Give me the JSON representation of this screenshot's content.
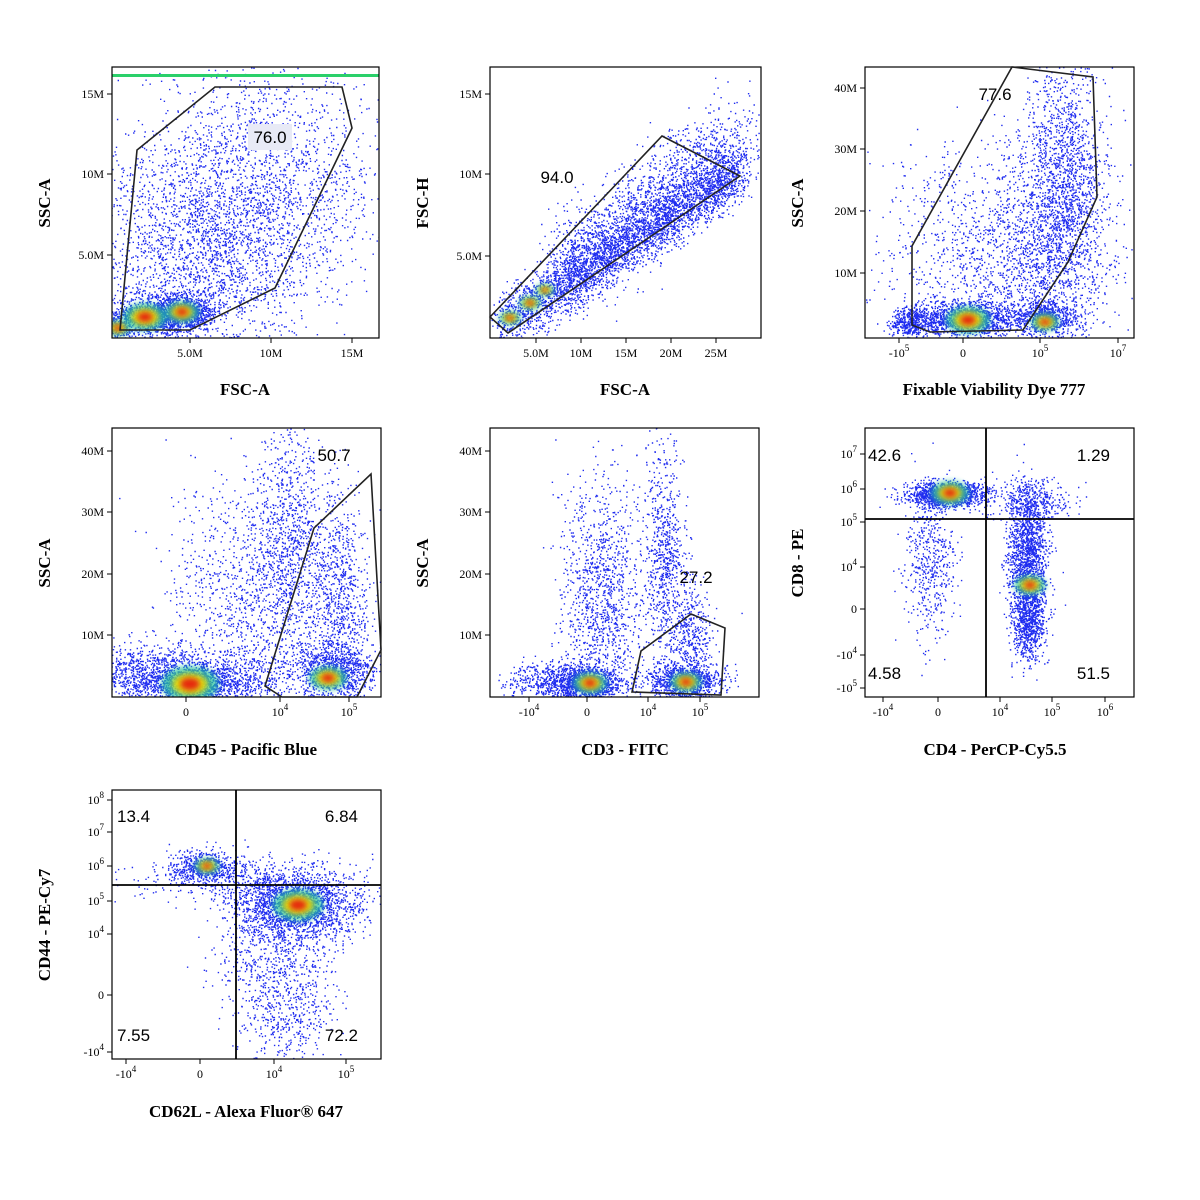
{
  "chart_data": [
    {
      "type": "scatter",
      "xlabel": "FSC-A",
      "ylabel": "SSC-A",
      "x_ticks": [
        "5.0M",
        "10M",
        "15M"
      ],
      "y_ticks": [
        "5.0M",
        "10M",
        "15M"
      ],
      "xlim": [
        0,
        16800000
      ],
      "ylim": [
        0,
        16500000
      ],
      "gates": [
        {
          "label": "76.0"
        }
      ]
    },
    {
      "type": "scatter",
      "xlabel": "FSC-A",
      "ylabel": "FSC-H",
      "x_ticks": [
        "5.0M",
        "10M",
        "15M",
        "20M",
        "25M"
      ],
      "y_ticks": [
        "5.0M",
        "10M",
        "15M"
      ],
      "xlim": [
        0,
        29500000
      ],
      "ylim": [
        0,
        16500000
      ],
      "gates": [
        {
          "label": "94.0"
        }
      ]
    },
    {
      "type": "scatter",
      "xlabel": "Fixable Viability Dye 777",
      "ylabel": "SSC-A",
      "x_ticks": [
        "-10",
        "0",
        "10",
        "10"
      ],
      "x_tick_exponents": [
        "5",
        "",
        "5",
        "7"
      ],
      "y_ticks": [
        "10M",
        "20M",
        "30M",
        "40M"
      ],
      "ylim": [
        0,
        43500000
      ],
      "gates": [
        {
          "label": "77.6"
        }
      ]
    },
    {
      "type": "scatter",
      "xlabel": "CD45 - Pacific Blue",
      "ylabel": "SSC-A",
      "x_ticks": [
        "0",
        "10",
        "10"
      ],
      "x_tick_exponents": [
        "",
        "4",
        "5"
      ],
      "y_ticks": [
        "10M",
        "20M",
        "30M",
        "40M"
      ],
      "ylim": [
        0,
        43500000
      ],
      "gates": [
        {
          "label": "50.7"
        }
      ]
    },
    {
      "type": "scatter",
      "xlabel": "CD3 - FITC",
      "ylabel": "SSC-A",
      "x_ticks": [
        "-10",
        "0",
        "10",
        "10"
      ],
      "x_tick_exponents": [
        "4",
        "",
        "4",
        "5"
      ],
      "y_ticks": [
        "10M",
        "20M",
        "30M",
        "40M"
      ],
      "ylim": [
        0,
        43500000
      ],
      "gates": [
        {
          "label": "27.2"
        }
      ]
    },
    {
      "type": "scatter",
      "xlabel": "CD4 - PerCP-Cy5.5",
      "ylabel": "CD8 - PE",
      "x_ticks": [
        "-10",
        "0",
        "10",
        "10",
        "10"
      ],
      "x_tick_exponents": [
        "4",
        "",
        "4",
        "5",
        "6"
      ],
      "y_ticks": [
        "-10",
        "-10",
        "0",
        "10",
        "10",
        "10"
      ],
      "y_tick_exponents": [
        "5",
        "4",
        "",
        "4",
        "5",
        "6"
      ],
      "extra_y_tick": {
        "text": "10",
        "exponent": "7"
      },
      "quadrants": [
        {
          "position": "top-left",
          "label": "42.6"
        },
        {
          "position": "top-right",
          "label": "1.29"
        },
        {
          "position": "bottom-left",
          "label": "4.58"
        },
        {
          "position": "bottom-right",
          "label": "51.5"
        }
      ]
    },
    {
      "type": "scatter",
      "xlabel": "CD62L - Alexa Fluor® 647",
      "ylabel": "CD44 - PE-Cy7",
      "x_ticks": [
        "-10",
        "0",
        "10",
        "10"
      ],
      "x_tick_exponents": [
        "4",
        "",
        "4",
        "5"
      ],
      "y_ticks": [
        "-10",
        "0",
        "10",
        "10",
        "10",
        "10",
        "10"
      ],
      "y_tick_exponents": [
        "4",
        "",
        "4",
        "5",
        "6",
        "7",
        "8"
      ],
      "quadrants": [
        {
          "position": "top-left",
          "label": "13.4"
        },
        {
          "position": "top-right",
          "label": "6.84"
        },
        {
          "position": "bottom-left",
          "label": "7.55"
        },
        {
          "position": "bottom-right",
          "label": "72.2"
        }
      ]
    }
  ]
}
